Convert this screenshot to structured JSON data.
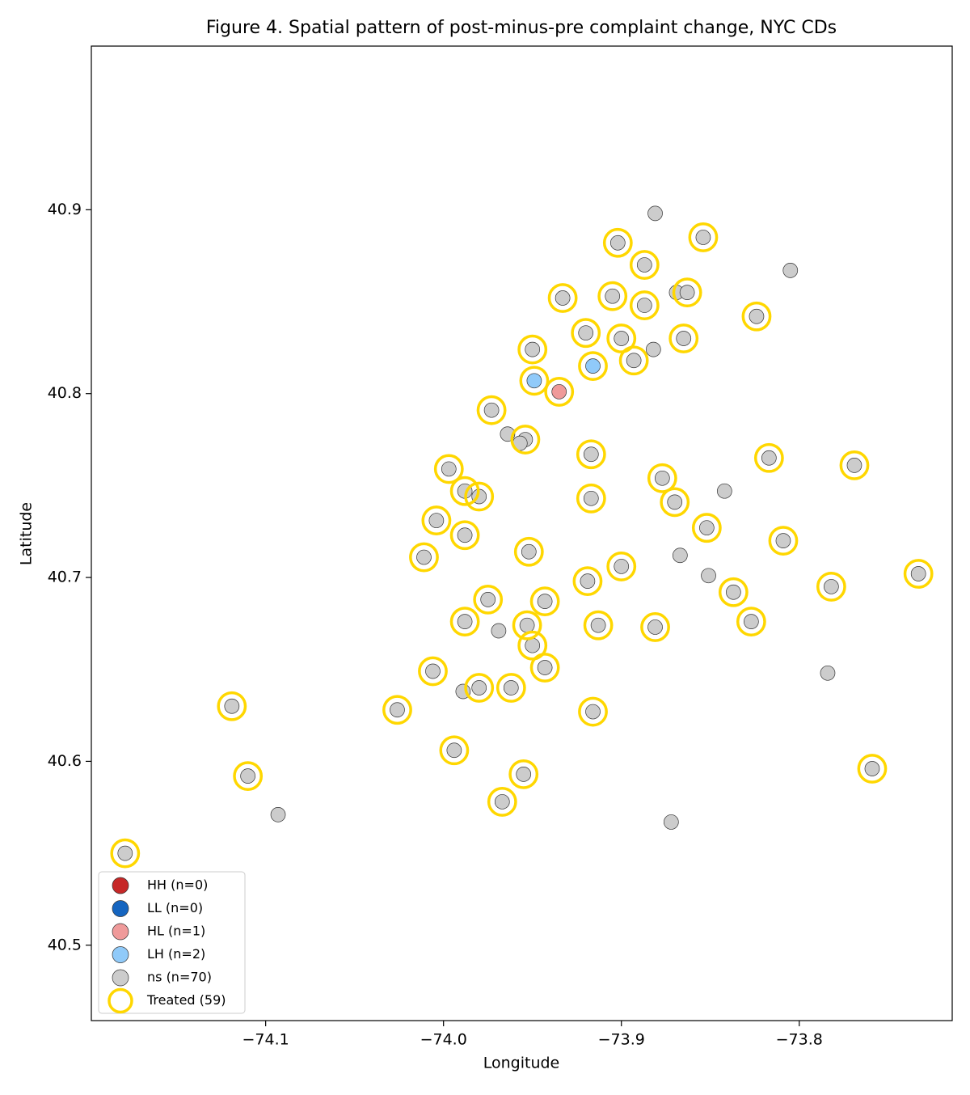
{
  "chart_data": {
    "type": "scatter",
    "title": "Figure 4. Spatial pattern of post-minus-pre complaint change, NYC CDs",
    "x_label": "Longitude",
    "y_label": "Latitude",
    "xlim": [
      -74.198,
      -73.714
    ],
    "ylim": [
      40.459,
      40.989
    ],
    "xticks": [
      {
        "value": -74.1,
        "label": "−74.1"
      },
      {
        "value": -74.0,
        "label": "−74.0"
      },
      {
        "value": -73.9,
        "label": "−73.9"
      },
      {
        "value": -73.8,
        "label": "−73.8"
      }
    ],
    "yticks": [
      40.5,
      40.6,
      40.7,
      40.8,
      40.9
    ],
    "grid": false,
    "legend": "lower left",
    "series": [
      {
        "name": "HH (n=0)",
        "color": "#c62828",
        "marker": "circle",
        "x": [],
        "values": []
      },
      {
        "name": "LL (n=0)",
        "color": "#1565c0",
        "marker": "circle",
        "x": [],
        "values": []
      },
      {
        "name": "HL (n=1)",
        "color": "#ef9a9a",
        "marker": "circle",
        "x": [
          -73.935
        ],
        "values": [
          40.801
        ]
      },
      {
        "name": "LH (n=2)",
        "color": "#90caf9",
        "marker": "circle",
        "x": [
          -73.949,
          -73.916
        ],
        "values": [
          40.807,
          40.815
        ]
      },
      {
        "name": "ns (n=70)",
        "color": "#cccccc",
        "marker": "circle",
        "x": [
          -73.881,
          -73.902,
          -73.854,
          -73.887,
          -73.805,
          -73.933,
          -73.905,
          -73.869,
          -73.863,
          -73.887,
          -73.824,
          -73.92,
          -73.9,
          -73.95,
          -73.882,
          -73.893,
          -73.865,
          -73.973,
          -73.964,
          -73.954,
          -73.957,
          -73.917,
          -73.817,
          -73.769,
          -73.997,
          -73.988,
          -73.98,
          -73.877,
          -73.917,
          -73.87,
          -73.842,
          -74.004,
          -73.852,
          -73.988,
          -73.809,
          -73.952,
          -73.867,
          -74.011,
          -73.9,
          -73.851,
          -73.733,
          -73.919,
          -73.782,
          -73.837,
          -73.975,
          -73.943,
          -73.969,
          -73.988,
          -73.953,
          -73.913,
          -73.881,
          -73.827,
          -73.95,
          -73.943,
          -74.006,
          -73.784,
          -73.989,
          -73.98,
          -73.962,
          -74.119,
          -74.026,
          -73.916,
          -73.994,
          -73.955,
          -74.11,
          -73.759,
          -74.093,
          -73.967,
          -73.872,
          -74.179
        ],
        "values": [
          40.898,
          40.882,
          40.885,
          40.87,
          40.867,
          40.852,
          40.853,
          40.855,
          40.855,
          40.848,
          40.842,
          40.833,
          40.83,
          40.824,
          40.824,
          40.818,
          40.83,
          40.791,
          40.778,
          40.775,
          40.773,
          40.767,
          40.765,
          40.761,
          40.759,
          40.747,
          40.744,
          40.754,
          40.743,
          40.741,
          40.747,
          40.731,
          40.727,
          40.723,
          40.72,
          40.714,
          40.712,
          40.711,
          40.706,
          40.701,
          40.702,
          40.698,
          40.695,
          40.692,
          40.688,
          40.687,
          40.671,
          40.676,
          40.674,
          40.674,
          40.673,
          40.676,
          40.663,
          40.651,
          40.649,
          40.648,
          40.638,
          40.64,
          40.64,
          40.63,
          40.628,
          40.627,
          40.606,
          40.593,
          40.592,
          40.596,
          40.571,
          40.578,
          40.567,
          40.55
        ]
      },
      {
        "name": "Treated (59)",
        "color": "#ffd700",
        "marker": "ring",
        "x": [
          -73.902,
          -73.854,
          -73.887,
          -73.933,
          -73.905,
          -73.863,
          -73.887,
          -73.824,
          -73.92,
          -73.9,
          -73.95,
          -73.893,
          -73.865,
          -73.973,
          -73.954,
          -73.917,
          -73.817,
          -73.769,
          -73.997,
          -73.988,
          -73.98,
          -73.877,
          -73.917,
          -73.87,
          -74.004,
          -73.852,
          -73.988,
          -73.809,
          -73.952,
          -74.011,
          -73.9,
          -73.733,
          -73.919,
          -73.782,
          -73.837,
          -73.975,
          -73.943,
          -73.988,
          -73.953,
          -73.913,
          -73.881,
          -73.827,
          -73.95,
          -73.943,
          -74.006,
          -73.98,
          -73.962,
          -74.119,
          -74.026,
          -73.916,
          -73.994,
          -73.955,
          -74.11,
          -73.759,
          -73.967,
          -74.179,
          -73.935,
          -73.949,
          -73.916
        ],
        "values": [
          40.882,
          40.885,
          40.87,
          40.852,
          40.853,
          40.855,
          40.848,
          40.842,
          40.833,
          40.83,
          40.824,
          40.818,
          40.83,
          40.791,
          40.775,
          40.767,
          40.765,
          40.761,
          40.759,
          40.747,
          40.744,
          40.754,
          40.743,
          40.741,
          40.731,
          40.727,
          40.723,
          40.72,
          40.714,
          40.711,
          40.706,
          40.702,
          40.698,
          40.695,
          40.692,
          40.688,
          40.687,
          40.676,
          40.674,
          40.674,
          40.673,
          40.676,
          40.663,
          40.651,
          40.649,
          40.64,
          40.64,
          40.63,
          40.628,
          40.627,
          40.606,
          40.593,
          40.592,
          40.596,
          40.578,
          40.55,
          40.801,
          40.807,
          40.815
        ]
      }
    ]
  }
}
